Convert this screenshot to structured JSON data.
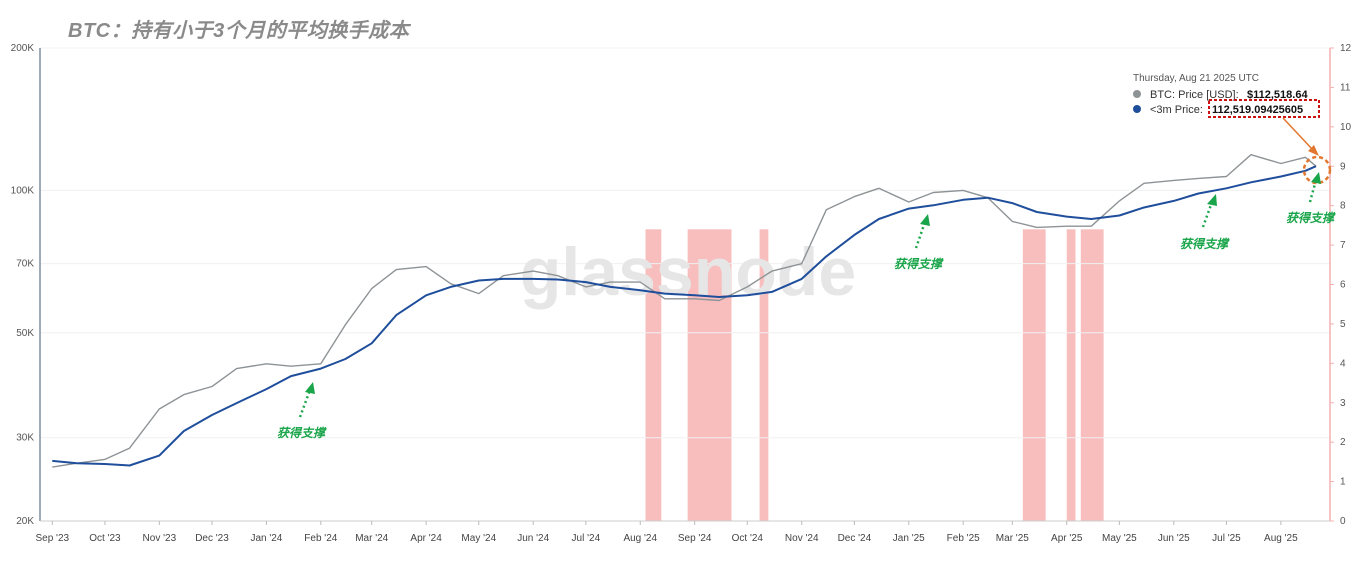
{
  "title": "BTC：持有小于3个月的平均换手成本",
  "watermark": "glassnode",
  "tooltip": {
    "date": "Thursday, Aug 21 2025 UTC",
    "btc_label": "BTC: Price [USD]:",
    "btc_value": "$112,518.64",
    "stp_label": "<3m Price:",
    "stp_value": "112,519.09425605"
  },
  "annotations": [
    "获得支撑",
    "获得支撑",
    "获得支撑",
    "获得支撑"
  ],
  "colors": {
    "btc": "#8e9396",
    "stp": "#1f4e9c",
    "band": "#f7b3b3",
    "arrow": "#1aa54a",
    "highlight": "#e2772f",
    "box": "#cc1111"
  },
  "chart_data": {
    "type": "line",
    "yscale": "log",
    "ylim": [
      20000,
      200000
    ],
    "yticks": [
      "20K",
      "30K",
      "50K",
      "70K",
      "100K",
      "200K"
    ],
    "y2lim": [
      0,
      12
    ],
    "y2ticks": [
      "0",
      "1",
      "2",
      "3",
      "4",
      "5",
      "6",
      "7",
      "8",
      "9",
      "10",
      "11",
      "12"
    ],
    "xticks": [
      "Sep '23",
      "Oct '23",
      "Nov '23",
      "Dec '23",
      "Jan '24",
      "Feb '24",
      "Mar '24",
      "Apr '24",
      "May '24",
      "Jun '24",
      "Jul '24",
      "Aug '24",
      "Sep '24",
      "Oct '24",
      "Nov '24",
      "Dec '24",
      "Jan '25",
      "Feb '25",
      "Mar '25",
      "Apr '25",
      "May '25",
      "Jun '25",
      "Jul '25",
      "Aug '25"
    ],
    "x": [
      "2023-09-01",
      "2023-09-15",
      "2023-10-01",
      "2023-10-15",
      "2023-11-01",
      "2023-11-15",
      "2023-12-01",
      "2023-12-15",
      "2024-01-01",
      "2024-01-15",
      "2024-02-01",
      "2024-02-15",
      "2024-03-01",
      "2024-03-15",
      "2024-04-01",
      "2024-04-15",
      "2024-05-01",
      "2024-05-15",
      "2024-06-01",
      "2024-06-15",
      "2024-07-01",
      "2024-07-15",
      "2024-08-01",
      "2024-08-15",
      "2024-09-01",
      "2024-09-15",
      "2024-10-01",
      "2024-10-15",
      "2024-11-01",
      "2024-11-15",
      "2024-12-01",
      "2024-12-15",
      "2025-01-01",
      "2025-01-15",
      "2025-02-01",
      "2025-02-15",
      "2025-03-01",
      "2025-03-15",
      "2025-04-01",
      "2025-04-15",
      "2025-05-01",
      "2025-05-15",
      "2025-06-01",
      "2025-06-15",
      "2025-07-01",
      "2025-07-15",
      "2025-08-01",
      "2025-08-15",
      "2025-08-21"
    ],
    "series": [
      {
        "name": "BTC: Price [USD]",
        "values": [
          26000,
          26500,
          27000,
          28500,
          34500,
          37000,
          38500,
          42000,
          43000,
          42500,
          43000,
          52000,
          62000,
          68000,
          69000,
          63500,
          60500,
          66000,
          67500,
          66000,
          62500,
          64000,
          64000,
          59000,
          59000,
          58500,
          62500,
          67500,
          70000,
          91000,
          97000,
          101000,
          94500,
          99000,
          100000,
          96500,
          86000,
          83500,
          84000,
          84000,
          95000,
          103500,
          105000,
          106000,
          107000,
          119000,
          114000,
          117500,
          112518.64
        ]
      },
      {
        "name": "<3m Price",
        "values": [
          26800,
          26500,
          26400,
          26200,
          27500,
          31000,
          33500,
          35500,
          38000,
          40500,
          42000,
          44000,
          47500,
          54500,
          60000,
          62500,
          64500,
          65000,
          65000,
          64800,
          64000,
          62500,
          61500,
          60500,
          60000,
          59500,
          60000,
          61000,
          65000,
          72500,
          80500,
          87000,
          91500,
          93000,
          95500,
          96500,
          94000,
          90000,
          88000,
          87000,
          88500,
          92000,
          95000,
          98500,
          101000,
          104000,
          107000,
          110000,
          112519.09
        ]
      }
    ],
    "highlight_bands": [
      [
        "2024-08-04",
        "2024-08-13"
      ],
      [
        "2024-08-28",
        "2024-09-22"
      ],
      [
        "2024-10-08",
        "2024-10-13"
      ],
      [
        "2025-03-07",
        "2025-03-20"
      ],
      [
        "2025-04-01",
        "2025-04-06"
      ],
      [
        "2025-04-09",
        "2025-04-22"
      ]
    ]
  }
}
